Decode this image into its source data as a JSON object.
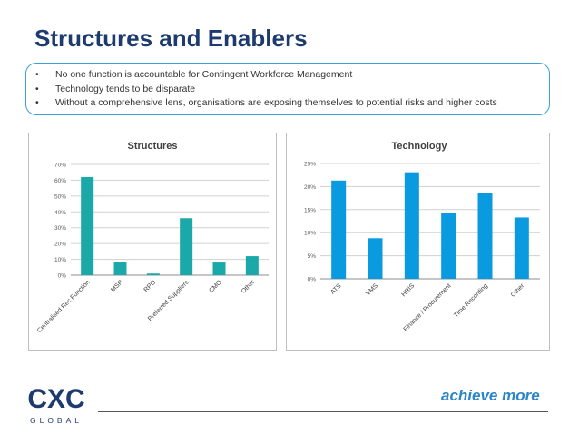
{
  "page_title": "Structures and Enablers",
  "bullets": [
    "No one function is accountable for Contingent Workforce Management",
    "Technology tends to be disparate",
    "Without a comprehensive lens, organisations are exposing themselves to potential risks and higher costs"
  ],
  "bullet_symbol": "•",
  "chart_data": [
    {
      "type": "bar",
      "title": "Structures",
      "categories": [
        "Centralised Rec Function",
        "MSP",
        "RPO",
        "Preferred Suppliers",
        "CMO",
        "Other"
      ],
      "values": [
        62,
        8,
        1,
        36,
        8,
        12
      ],
      "ylim": [
        0,
        70
      ],
      "yticks": [
        0,
        10,
        20,
        30,
        40,
        50,
        60,
        70
      ],
      "y_unit": "%",
      "grid": true,
      "bar_color": "#1aa8a8"
    },
    {
      "type": "bar",
      "title": "Technology",
      "categories": [
        "ATS",
        "VMS",
        "HRIS",
        "Finance / Procurement",
        "Time Recording",
        "Other"
      ],
      "values": [
        21.3,
        8.8,
        23.1,
        14.2,
        18.6,
        13.3
      ],
      "ylim": [
        0,
        25
      ],
      "yticks": [
        0,
        5,
        10,
        15,
        20,
        25
      ],
      "y_unit": "%",
      "grid": true,
      "bar_color": "#0a9ae0"
    }
  ],
  "logo": {
    "letters": "CXC",
    "subtitle": "GLOBAL",
    "color": "#1d3b6e"
  },
  "tagline": "achieve more",
  "colors": {
    "title": "#1d3b6e",
    "tagline": "#2a86c8",
    "bullet_border": "#3aa0d8"
  }
}
